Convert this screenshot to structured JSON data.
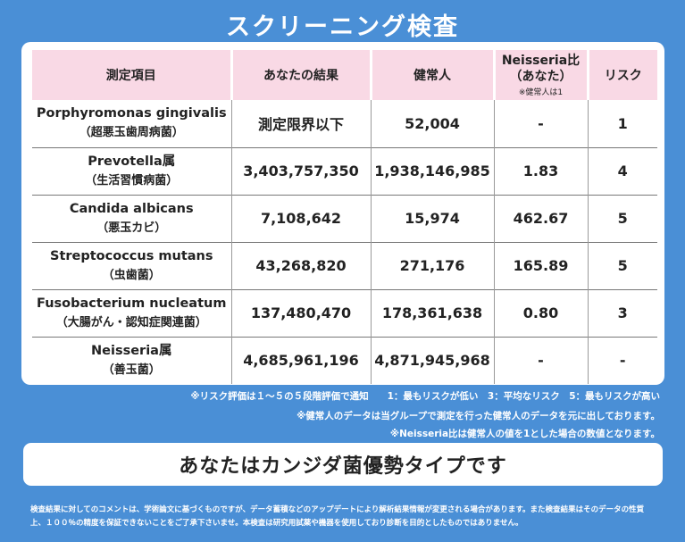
{
  "title": "スクリーニング検査",
  "table": {
    "headers": {
      "item": "測定項目",
      "result": "あなたの結果",
      "healthy": "健常人",
      "ratio_line1": "Neisseria比",
      "ratio_line2": "（あなた）",
      "ratio_note": "※健常人は1",
      "risk": "リスク"
    },
    "rows": [
      {
        "name": "Porphyromonas gingivalis",
        "sub": "（超悪玉歯周病菌）",
        "result": "測定限界以下",
        "healthy": "52,004",
        "ratio": "-",
        "risk": "1"
      },
      {
        "name": "Prevotella属",
        "sub": "（生活習慣病菌）",
        "result": "3,403,757,350",
        "healthy": "1,938,146,985",
        "ratio": "1.83",
        "risk": "4"
      },
      {
        "name": "Candida albicans",
        "sub": "（悪玉カビ）",
        "result": "7,108,642",
        "healthy": "15,974",
        "ratio": "462.67",
        "risk": "5"
      },
      {
        "name": "Streptococcus mutans",
        "sub": "（虫歯菌）",
        "result": "43,268,820",
        "healthy": "271,176",
        "ratio": "165.89",
        "risk": "5"
      },
      {
        "name": "Fusobacterium nucleatum",
        "sub": "（大腸がん・認知症関連菌）",
        "result": "137,480,470",
        "healthy": "178,361,638",
        "ratio": "0.80",
        "risk": "3"
      },
      {
        "name": "Neisseria属",
        "sub": "（善玉菌）",
        "result": "4,685,961,196",
        "healthy": "4,871,945,968",
        "ratio": "-",
        "risk": "-"
      }
    ]
  },
  "notes": {
    "risk_scale": "※リスク評価は１～５の５段階評価で通知　　1：最もリスクが低い　3：平均なリスク　5：最もリスクが高い",
    "healthy_data": "※健常人のデータは当グループで測定を行った健常人のデータを元に出しております。",
    "neisseria_ratio": "※Neisseria比は健常人の値を1とした場合の数値となります。"
  },
  "verdict": "あなたはカンジダ菌優勢タイプです",
  "disclaimer": {
    "line1": "検査結果に対してのコメントは、学術論文に基づくものですが、データ蓄積などのアップデートにより解析結果情報が変更される場合があります。また検査結果はそのデータの性質",
    "line2": "上、１００％の精度を保証できないことをご了承下さいませ。本検査は研究用試薬や機器を使用しており診断を目的としたものではありません。"
  }
}
